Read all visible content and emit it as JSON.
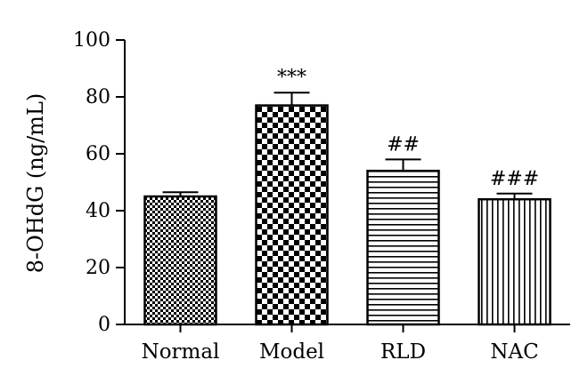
{
  "chart_data": {
    "type": "bar",
    "categories": [
      "Normal",
      "Model",
      "RLD",
      "NAC"
    ],
    "values": [
      45,
      77,
      54,
      44
    ],
    "errors": [
      1.5,
      4.5,
      4,
      2
    ],
    "annotations": [
      "",
      "***",
      "##",
      "###"
    ],
    "patterns": [
      "checker-fine",
      "checker-coarse",
      "horizontal-lines",
      "vertical-lines"
    ],
    "xlabel": "",
    "ylabel": "8-OHdG (ng/mL)",
    "ylim": [
      0,
      100
    ],
    "yticks": [
      0,
      20,
      40,
      60,
      80,
      100
    ],
    "grid": false,
    "legend": "none",
    "colors": {
      "bar_stroke": "#000000",
      "pattern": "#000000",
      "background": "#ffffff"
    }
  }
}
